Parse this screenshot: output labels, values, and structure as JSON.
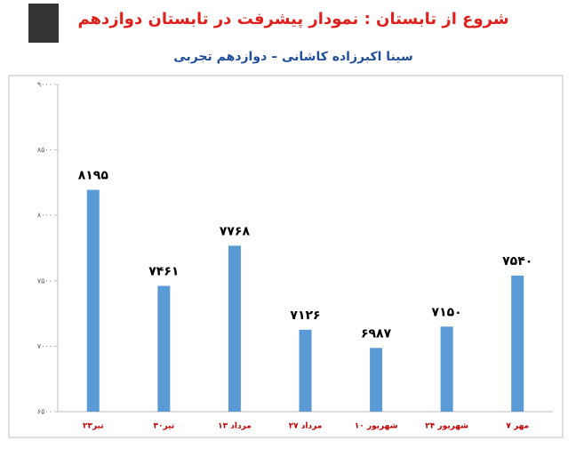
{
  "chart_data": {
    "type": "bar",
    "title": "شروع از تابستان : نمودار پیشرفت در تابستان دوازدهم",
    "subtitle": "سینا اکبرزاده کاشانی – دوازدهم تجربی",
    "categories": [
      "۲۳تیر",
      "۳۰تیر",
      "۱۳ مرداد",
      "۲۷ مرداد",
      "۱۰ شهریور",
      "۲۴ شهریور",
      "۷ مهر"
    ],
    "values": [
      8195,
      7461,
      7768,
      7126,
      6987,
      7150,
      7540
    ],
    "value_labels": [
      "۸۱۹۵",
      "۷۴۶۱",
      "۷۷۶۸",
      "۷۱۲۶",
      "۶۹۸۷",
      "۷۱۵۰",
      "۷۵۴۰"
    ],
    "color": "#5b9bd5",
    "ylim": [
      6500,
      9000
    ],
    "yticks": [
      {
        "value": 6500,
        "label": "۶۵۰۰"
      },
      {
        "value": 7000,
        "label": "۷۰۰۰"
      },
      {
        "value": 7500,
        "label": "۷۵۰۰"
      },
      {
        "value": 8000,
        "label": "۸۰۰۰"
      },
      {
        "value": 8500,
        "label": "۸۵۰۰"
      },
      {
        "value": 9000,
        "label": "۹۰۰۰"
      }
    ],
    "grid": false
  }
}
